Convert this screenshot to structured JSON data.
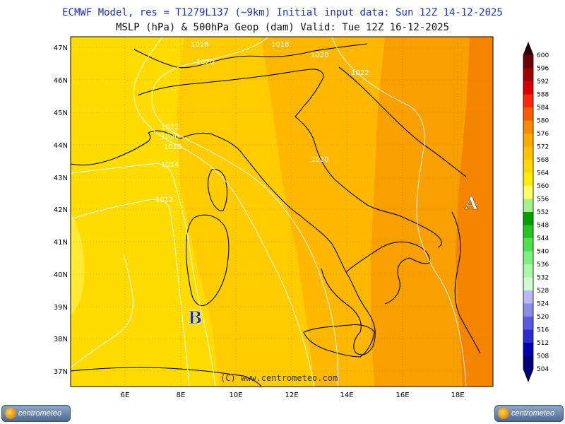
{
  "header": {
    "line1": "ECMWF Model, res = T1279L137 (~9km)   Initial input data: Sun 12Z 14-12-2025",
    "line2": "MSLP (hPa) & 500hPa Geop (dam)  Valid: Tue 12Z 16-12-2025"
  },
  "map": {
    "lat_labels": [
      "47N",
      "46N",
      "45N",
      "44N",
      "43N",
      "42N",
      "41N",
      "40N",
      "39N",
      "38N",
      "37N"
    ],
    "lon_labels": [
      "6E",
      "8E",
      "10E",
      "12E",
      "14E",
      "16E",
      "18E"
    ],
    "isobar_labels": [
      "1018",
      "1020",
      "1018",
      "1020",
      "1022",
      "1022",
      "1020",
      "1018",
      "1014",
      "1012",
      "1020"
    ],
    "markers": {
      "high": "A",
      "low": "B"
    },
    "copyright": "(C) www.centrometeo.com",
    "colors": {
      "geop_556_560": "#ffd200",
      "geop_560_564": "#ffc400",
      "geop_564_568": "#f7a800",
      "geop_568_572": "#f58a00",
      "coast": "#000000",
      "isobar": "#ffffff",
      "grid": "#c08000"
    }
  },
  "colorbar": {
    "labels": [
      "600",
      "596",
      "592",
      "588",
      "584",
      "580",
      "576",
      "572",
      "568",
      "564",
      "560",
      "556",
      "552",
      "548",
      "544",
      "540",
      "536",
      "532",
      "528",
      "524",
      "520",
      "516",
      "512",
      "508",
      "504"
    ],
    "colors": [
      "#2a0000",
      "#6a0000",
      "#a00000",
      "#d80000",
      "#ff2600",
      "#ff5a00",
      "#ff8a00",
      "#ffa800",
      "#ffc200",
      "#ffd800",
      "#ffee00",
      "#ffff66",
      "#aaf08a",
      "#00a000",
      "#24c824",
      "#4ee04e",
      "#7cf27c",
      "#a8f8a8",
      "#d0fbd0",
      "#b8b8f2",
      "#8c8ce8",
      "#5a5ae0",
      "#2c2cd0",
      "#0000b0",
      "#00007a"
    ]
  },
  "footer": {
    "logo_left": "centrometeo",
    "logo_right": "centrometeo"
  }
}
